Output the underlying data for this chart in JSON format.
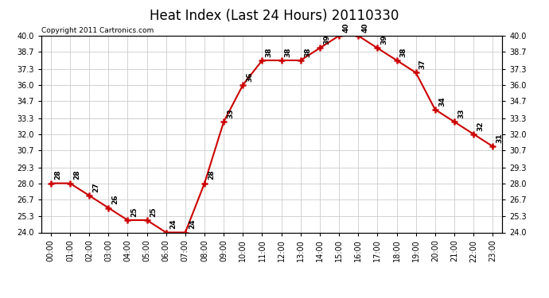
{
  "title": "Heat Index (Last 24 Hours) 20110330",
  "copyright": "Copyright 2011 Cartronics.com",
  "hours": [
    "00:00",
    "01:00",
    "02:00",
    "03:00",
    "04:00",
    "05:00",
    "06:00",
    "07:00",
    "08:00",
    "09:00",
    "10:00",
    "11:00",
    "12:00",
    "13:00",
    "14:00",
    "15:00",
    "16:00",
    "17:00",
    "18:00",
    "19:00",
    "20:00",
    "21:00",
    "22:00",
    "23:00"
  ],
  "values": [
    28,
    28,
    27,
    26,
    25,
    25,
    24,
    24,
    28,
    33,
    36,
    38,
    38,
    38,
    39,
    40,
    40,
    39,
    38,
    37,
    34,
    33,
    32,
    31
  ],
  "line_color": "#cc0000",
  "marker": "+",
  "marker_size": 6,
  "marker_color": "#cc0000",
  "ylim_min": 24.0,
  "ylim_max": 40.0,
  "yticks": [
    24.0,
    25.3,
    26.7,
    28.0,
    29.3,
    30.7,
    32.0,
    33.3,
    34.7,
    36.0,
    37.3,
    38.7,
    40.0
  ],
  "background_color": "#ffffff",
  "grid_color": "#cccccc",
  "title_fontsize": 12,
  "label_fontsize": 7,
  "annotation_fontsize": 6.5,
  "copyright_fontsize": 6.5
}
